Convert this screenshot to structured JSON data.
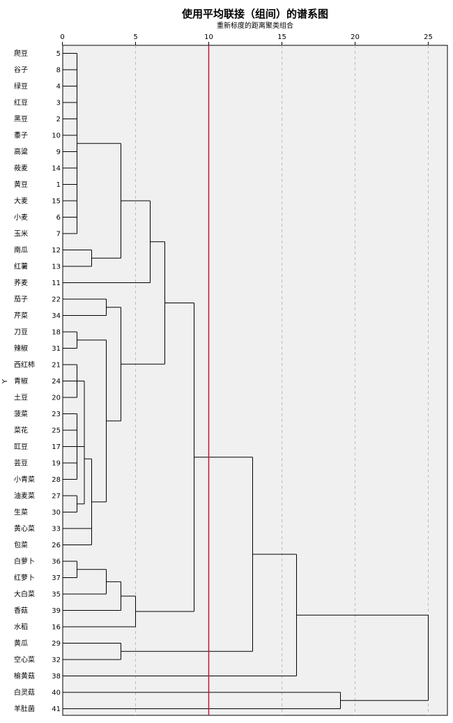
{
  "chart_data": {
    "type": "dendrogram",
    "title": "使用平均联接（组间）的谱系图",
    "subtitle": "重新标度的距离聚类组合",
    "ylabel": "Y",
    "x_axis": {
      "min": 0,
      "max": 25,
      "ticks": [
        0,
        5,
        10,
        15,
        20,
        25
      ],
      "grid": "dashed"
    },
    "reference_line": {
      "value": 10,
      "color": "#c0143c"
    },
    "colors": {
      "plot_bg": "#f0f0f0",
      "line": "#000000",
      "grid": "#bbbbbb"
    },
    "leaves": [
      {
        "name": "爬豆",
        "id": 5
      },
      {
        "name": "谷子",
        "id": 8
      },
      {
        "name": "绿豆",
        "id": 4
      },
      {
        "name": "红豆",
        "id": 3
      },
      {
        "name": "黑豆",
        "id": 2
      },
      {
        "name": "黍子",
        "id": 10
      },
      {
        "name": "高粱",
        "id": 9
      },
      {
        "name": "莜麦",
        "id": 14
      },
      {
        "name": "黄豆",
        "id": 1
      },
      {
        "name": "大麦",
        "id": 15
      },
      {
        "name": "小麦",
        "id": 6
      },
      {
        "name": "玉米",
        "id": 7
      },
      {
        "name": "南瓜",
        "id": 12
      },
      {
        "name": "红薯",
        "id": 13
      },
      {
        "name": "荞麦",
        "id": 11
      },
      {
        "name": "茄子",
        "id": 22
      },
      {
        "name": "芹菜",
        "id": 34
      },
      {
        "name": "刀豆",
        "id": 18
      },
      {
        "name": "辣椒",
        "id": 31
      },
      {
        "name": "西红柿",
        "id": 21
      },
      {
        "name": "青椒",
        "id": 24
      },
      {
        "name": "土豆",
        "id": 20
      },
      {
        "name": "菠菜",
        "id": 23
      },
      {
        "name": "菜花",
        "id": 25
      },
      {
        "name": "豇豆",
        "id": 17
      },
      {
        "name": "芸豆",
        "id": 19
      },
      {
        "name": "小青菜",
        "id": 28
      },
      {
        "name": "油麦菜",
        "id": 27
      },
      {
        "name": "生菜",
        "id": 30
      },
      {
        "name": "黄心菜",
        "id": 33
      },
      {
        "name": "包菜",
        "id": 26
      },
      {
        "name": "白萝卜",
        "id": 36
      },
      {
        "name": "红萝卜",
        "id": 37
      },
      {
        "name": "大白菜",
        "id": 35
      },
      {
        "name": "香菇",
        "id": 39
      },
      {
        "name": "水稻",
        "id": 16
      },
      {
        "name": "黄瓜",
        "id": 29
      },
      {
        "name": "空心菜",
        "id": 32
      },
      {
        "name": "榆黄菇",
        "id": 38
      },
      {
        "name": "白灵菇",
        "id": 40
      },
      {
        "name": "羊肚菌",
        "id": 41
      }
    ],
    "merges": [
      {
        "children": [
          0,
          1,
          2,
          3,
          4,
          5,
          6,
          7,
          8,
          9,
          10,
          11
        ],
        "distance": 1
      },
      {
        "children": [
          12,
          13
        ],
        "distance": 2
      },
      {
        "children": [
          41,
          42
        ],
        "distance": 4
      },
      {
        "children": [
          43,
          14
        ],
        "distance": 6
      },
      {
        "children": [
          15,
          16
        ],
        "distance": 3
      },
      {
        "children": [
          17,
          18
        ],
        "distance": 1
      },
      {
        "children": [
          19,
          20,
          21
        ],
        "distance": 1
      },
      {
        "children": [
          22,
          23,
          24,
          25,
          26
        ],
        "distance": 1
      },
      {
        "children": [
          47,
          48
        ],
        "distance": 1.5
      },
      {
        "children": [
          27,
          28
        ],
        "distance": 1
      },
      {
        "children": [
          49,
          50
        ],
        "distance": 1.5
      },
      {
        "children": [
          51,
          29,
          30
        ],
        "distance": 2
      },
      {
        "children": [
          46,
          52
        ],
        "distance": 3
      },
      {
        "children": [
          45,
          53
        ],
        "distance": 4
      },
      {
        "children": [
          44,
          54
        ],
        "distance": 7
      },
      {
        "children": [
          31,
          32
        ],
        "distance": 1
      },
      {
        "children": [
          56,
          33
        ],
        "distance": 3
      },
      {
        "children": [
          57,
          34
        ],
        "distance": 4
      },
      {
        "children": [
          58,
          35
        ],
        "distance": 5
      },
      {
        "children": [
          55,
          59
        ],
        "distance": 9
      },
      {
        "children": [
          36,
          37
        ],
        "distance": 4
      },
      {
        "children": [
          60,
          61
        ],
        "distance": 13
      },
      {
        "children": [
          62,
          38
        ],
        "distance": 16
      },
      {
        "children": [
          39,
          40
        ],
        "distance": 19
      },
      {
        "children": [
          63,
          64
        ],
        "distance": 25
      }
    ]
  }
}
